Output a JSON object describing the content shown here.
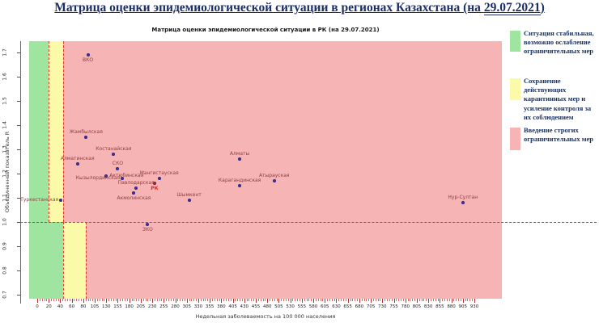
{
  "page": {
    "title_prefix": "Матрица оценки эпидемиологической ситуации в регионах Казахстана (на ",
    "title_date": "29.07.2021",
    "title_suffix": ")"
  },
  "chart_data": {
    "type": "scatter",
    "title": "Матрица оценки эпидемиологической ситуации в РК (на 29.07.2021)",
    "xlabel": "Недельная заболеваемость на 100 000 населения",
    "ylabel": "Объединенный показатель R",
    "x_ticks": [
      0,
      20,
      40,
      60,
      80,
      105,
      130,
      155,
      180,
      205,
      230,
      255,
      280,
      305,
      330,
      355,
      380,
      405,
      430,
      455,
      480,
      505,
      530,
      555,
      580,
      605,
      630,
      655,
      680,
      705,
      730,
      755,
      780,
      805,
      830,
      855,
      880,
      905,
      930
    ],
    "y_ticks": [
      "1.7",
      "1.6",
      "1.5",
      "1.4",
      "1.3",
      "1.2",
      "1.1",
      "1.0",
      "0.9",
      "0.8",
      "0.7"
    ],
    "ylim": [
      0.68,
      1.75
    ],
    "grid": false,
    "r_threshold": 1.0,
    "zones": {
      "above_r1": {
        "green_max": 20,
        "yellow_max": 45
      },
      "below_r1": {
        "green_max": 45,
        "yellow_max": 85
      },
      "colors": {
        "green": "#9FE49F",
        "yellow": "#FAFAA8",
        "pink": "#F6B4B4"
      },
      "boundary_line_color": "#e23b2e"
    },
    "point_color": "#3a32a6",
    "label_color": "#8d3f3f",
    "points": [
      {
        "name": "ВКО",
        "x": 90,
        "r": 1.69,
        "pos": "below"
      },
      {
        "name": "Жамбылская",
        "x": 86,
        "r": 1.35,
        "pos": "above"
      },
      {
        "name": "Костанайская",
        "x": 146,
        "r": 1.28,
        "pos": "above"
      },
      {
        "name": "Алматинская",
        "x": 70,
        "r": 1.24,
        "pos": "above"
      },
      {
        "name": "СКО",
        "x": 155,
        "r": 1.22,
        "pos": "above"
      },
      {
        "name": "Актюбинская",
        "x": 130,
        "r": 1.19,
        "pos": "right"
      },
      {
        "name": "Кызылординская",
        "x": 165,
        "r": 1.18,
        "pos": "left"
      },
      {
        "name": "Мангистауская",
        "x": 245,
        "r": 1.18,
        "pos": "above"
      },
      {
        "name": "РК",
        "x": 235,
        "r": 1.16,
        "pos": "below",
        "dot_color": "#c21d1d",
        "label_color": "#e8281e"
      },
      {
        "name": "Павлодарская",
        "x": 195,
        "r": 1.14,
        "pos": "above"
      },
      {
        "name": "Акмолинская",
        "x": 190,
        "r": 1.12,
        "pos": "below"
      },
      {
        "name": "Туркестанская",
        "x": 41,
        "r": 1.09,
        "pos": "left"
      },
      {
        "name": "Шымкент",
        "x": 310,
        "r": 1.09,
        "pos": "above"
      },
      {
        "name": "Алматы",
        "x": 420,
        "r": 1.26,
        "pos": "above"
      },
      {
        "name": "Карагандинская",
        "x": 420,
        "r": 1.15,
        "pos": "above"
      },
      {
        "name": "Атырауская",
        "x": 495,
        "r": 1.17,
        "pos": "above"
      },
      {
        "name": "Нур-Султан",
        "x": 905,
        "r": 1.08,
        "pos": "above"
      },
      {
        "name": "ЗКО",
        "x": 220,
        "r": 0.99,
        "pos": "below"
      }
    ]
  },
  "legend": {
    "items": [
      {
        "id": "green",
        "color": "#9FE49F",
        "text": "Ситуация стабильная, возможно ослабление ограничительных мер"
      },
      {
        "id": "yellow",
        "color": "#FAFAA8",
        "text": "Сохранение действующих карантинных мер и усиление контроля за их соблюдением"
      },
      {
        "id": "pink",
        "color": "#F6B4B4",
        "text": "Введение строгих ограничительных мер"
      }
    ]
  }
}
